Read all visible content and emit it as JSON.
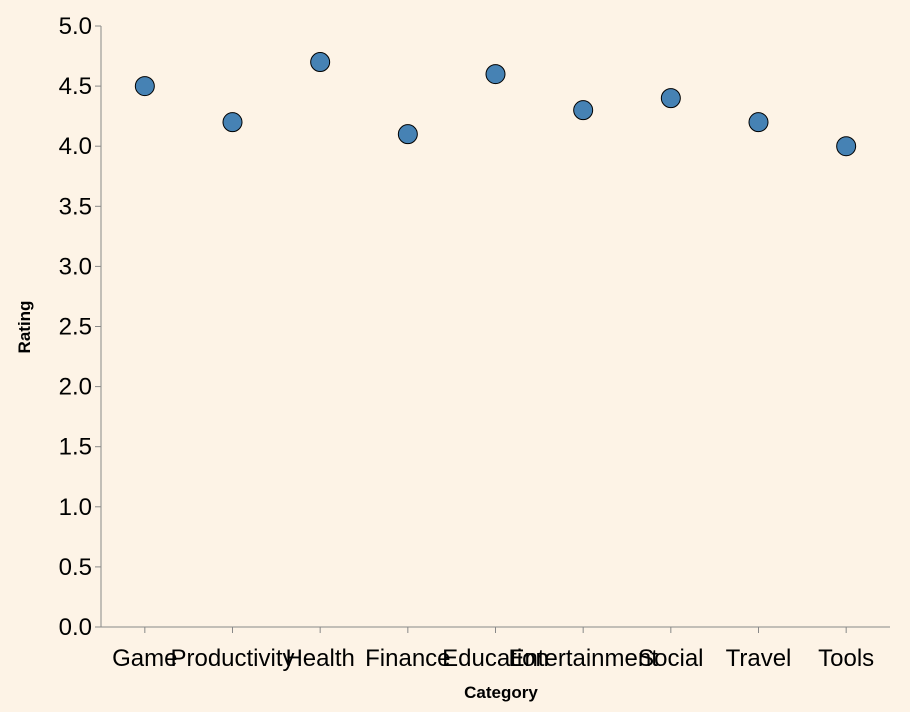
{
  "colors": {
    "background": "#fdf3e6",
    "point_fill": "#4682b4",
    "point_stroke": "#000000",
    "axis": "#888888"
  },
  "chart_data": {
    "type": "scatter",
    "categories": [
      "Game",
      "Productivity",
      "Health",
      "Finance",
      "Education",
      "Entertainment",
      "Social",
      "Travel",
      "Tools"
    ],
    "values": [
      4.5,
      4.2,
      4.7,
      4.1,
      4.6,
      4.3,
      4.4,
      4.2,
      4.0
    ],
    "xlabel": "Category",
    "ylabel": "Rating",
    "ylim": [
      0,
      5
    ],
    "yticks": [
      "0.0",
      "0.5",
      "1.0",
      "1.5",
      "2.0",
      "2.5",
      "3.0",
      "3.5",
      "4.0",
      "4.5",
      "5.0"
    ],
    "grid": false,
    "legend": "none"
  }
}
